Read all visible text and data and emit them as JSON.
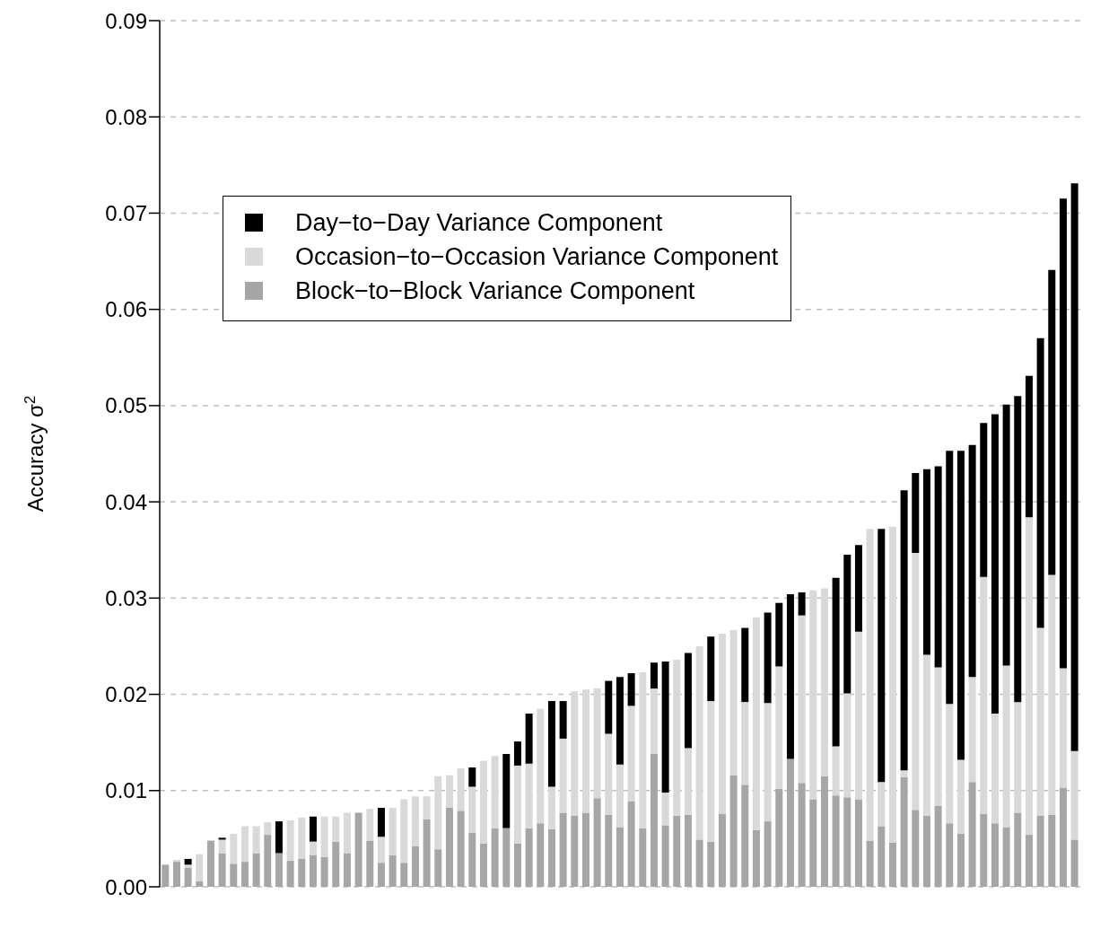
{
  "chart_data": {
    "type": "bar",
    "stacked": true,
    "ylabel": "Accuracy σ$^{2}$",
    "categories": [
      null,
      null,
      null,
      null,
      null,
      null,
      null,
      null,
      null,
      null,
      null,
      null,
      null,
      null,
      null,
      null,
      null,
      null,
      null,
      null,
      null,
      null,
      null,
      null,
      null,
      null,
      null,
      null,
      null,
      null,
      null,
      null,
      null,
      null,
      null,
      null,
      null,
      null,
      null,
      null,
      null,
      null,
      null,
      null,
      null,
      null,
      null,
      null,
      null,
      null,
      null,
      null,
      null,
      null,
      null,
      null,
      null,
      null,
      null,
      null,
      null,
      null,
      null,
      null,
      null,
      null,
      null,
      null,
      null,
      null,
      null,
      null,
      null,
      null,
      null,
      null,
      null,
      null,
      null,
      null,
      null
    ],
    "series": [
      {
        "name": "Block−to−Block Variance Component",
        "color": "#a6a6a6",
        "values": [
          0.0023,
          0.0026,
          0.002,
          0.0006,
          0.0048,
          0.0035,
          0.0024,
          0.0026,
          0.0035,
          0.0054,
          0.0035,
          0.0027,
          0.0029,
          0.0033,
          0.0031,
          0.0047,
          0.0035,
          0.0077,
          0.0048,
          0.0025,
          0.0033,
          0.0025,
          0.0042,
          0.007,
          0.0039,
          0.0082,
          0.0079,
          0.0056,
          0.0045,
          0.0061,
          0.0061,
          0.0045,
          0.0061,
          0.0066,
          0.006,
          0.0077,
          0.0074,
          0.0077,
          0.0092,
          0.0075,
          0.0062,
          0.0089,
          0.0061,
          0.0138,
          0.0064,
          0.0074,
          0.0075,
          0.0049,
          0.0047,
          0.0076,
          0.0116,
          0.0106,
          0.0059,
          0.0068,
          0.0102,
          0.0133,
          0.0108,
          0.0091,
          0.0115,
          0.0095,
          0.0093,
          0.0091,
          0.0048,
          0.0063,
          0.0046,
          0.0114,
          0.008,
          0.0074,
          0.0084,
          0.0066,
          0.0055,
          0.0109,
          0.0076,
          0.0066,
          0.0062,
          0.0077,
          0.0054,
          0.0074,
          0.0075,
          0.0103,
          0.0049
        ]
      },
      {
        "name": "Occasion−to−Occasion Variance Component",
        "color": "#d9d9d9",
        "values": [
          0,
          0.0002,
          0.0003,
          0.0028,
          0,
          0.0014,
          0.0031,
          0.0037,
          0.0028,
          0.0013,
          0,
          0.0042,
          0.0043,
          0.0014,
          0.0042,
          0.0026,
          0.0042,
          0,
          0.0033,
          0.0027,
          0.0049,
          0.0066,
          0.0052,
          0.0024,
          0.0076,
          0.0034,
          0.0044,
          0.0048,
          0.0086,
          0.0075,
          0,
          0.0081,
          0.0067,
          0.0119,
          0.0044,
          0.0077,
          0.0129,
          0.0128,
          0.0114,
          0.0084,
          0.0065,
          0.0099,
          0.0162,
          0.0068,
          0.0034,
          0.0162,
          0.0069,
          0.0201,
          0.0146,
          0.0187,
          0.0151,
          0.0086,
          0.0221,
          0.0123,
          0.0127,
          0,
          0.0174,
          0.0217,
          0.0195,
          0.0051,
          0.0108,
          0.0174,
          0.0324,
          0.0046,
          0.0328,
          0.0007,
          0.0267,
          0.0167,
          0.0144,
          0.0124,
          0.0077,
          0.0109,
          0.0246,
          0.0114,
          0.0168,
          0.0115,
          0.033,
          0.0195,
          0.0249,
          0.0124,
          0.0092
        ]
      },
      {
        "name": "Day−to−Day Variance Component",
        "color": "#000000",
        "values": [
          0,
          0,
          0.0006,
          0,
          0,
          0.0002,
          0,
          0,
          0,
          0,
          0.0033,
          0,
          0,
          0.0026,
          0,
          0,
          0,
          0,
          0,
          0.003,
          0,
          0,
          0,
          0,
          0,
          0,
          0,
          0.002,
          0,
          0,
          0.0077,
          0.0025,
          0.0052,
          0,
          0.0089,
          0.0039,
          0,
          0,
          0,
          0.0055,
          0.0091,
          0.0034,
          0,
          0.0027,
          0.0136,
          0,
          0.0099,
          0,
          0.0067,
          0,
          0,
          0.0077,
          0,
          0.0094,
          0.0066,
          0.0171,
          0.0024,
          0,
          0,
          0.0175,
          0.0144,
          0.009,
          0,
          0.0263,
          0,
          0.0291,
          0.0083,
          0.0193,
          0.0209,
          0.0263,
          0.0321,
          0.0241,
          0.016,
          0.0311,
          0.0271,
          0.0318,
          0.0147,
          0.0301,
          0.0317,
          0.0488,
          0.059
        ]
      }
    ],
    "ylim": [
      0,
      0.09
    ],
    "yticks": [
      {
        "value": 0,
        "label": "0.00"
      },
      {
        "value": 0.01,
        "label": "0.01"
      },
      {
        "value": 0.02,
        "label": "0.02"
      },
      {
        "value": 0.03,
        "label": "0.03"
      },
      {
        "value": 0.04,
        "label": "0.04"
      },
      {
        "value": 0.05,
        "label": "0.05"
      },
      {
        "value": 0.06,
        "label": "0.06"
      },
      {
        "value": 0.07,
        "label": "0.07"
      },
      {
        "value": 0.08,
        "label": "0.08"
      },
      {
        "value": 0.09,
        "label": "0.09"
      }
    ],
    "grid": "y",
    "legend": "top left"
  }
}
